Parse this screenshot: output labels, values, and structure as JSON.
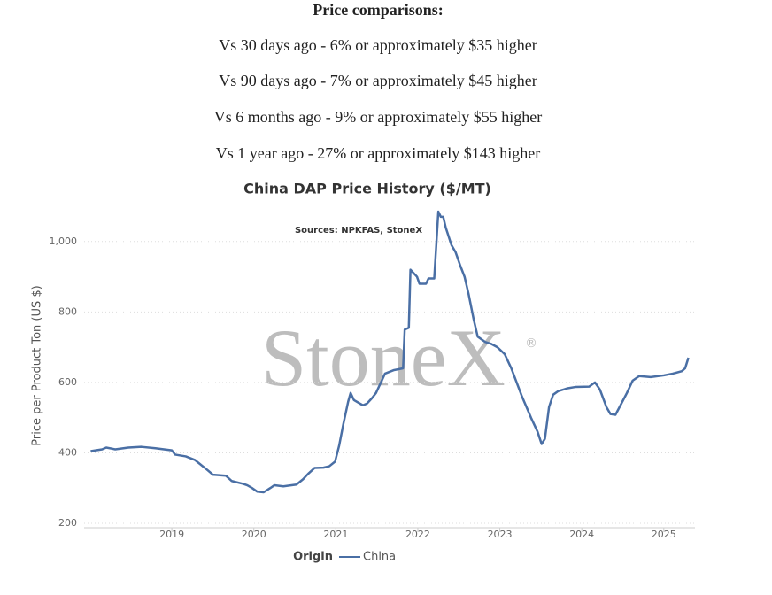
{
  "header": {
    "title": "Price comparisons:",
    "lines": [
      "Vs 30 days ago - 6% or approximately $35 higher",
      "Vs 90 days ago - 7% or approximately $45 higher",
      "Vs 6 months ago - 9% or approximately $55 higher",
      "Vs 1 year ago - 27% or approximately $143 higher"
    ]
  },
  "chart_data": {
    "type": "line",
    "title": "China DAP Price History ($/MT)",
    "subtitle": "Sources: NPKFAS, StoneX",
    "y_label": "Price per Product Ton (US $)",
    "watermark": "StoneX",
    "watermark_mark": "®",
    "legend_title": "Origin",
    "grid": true,
    "xlim": [
      2017.93,
      2025.38
    ],
    "xticks": [
      2019,
      2020,
      2021,
      2022,
      2023,
      2024,
      2025
    ],
    "ylim": [
      200,
      1100
    ],
    "yticks": [
      200,
      400,
      600,
      800,
      {
        "value": 1000,
        "label": "1,000"
      }
    ],
    "x": [
      2018.01,
      2018.15,
      2018.2,
      2018.31,
      2018.47,
      2018.63,
      2018.8,
      2019.0,
      2019.04,
      2019.17,
      2019.28,
      2019.44,
      2019.5,
      2019.66,
      2019.73,
      2019.87,
      2019.92,
      2019.98,
      2020.04,
      2020.12,
      2020.2,
      2020.25,
      2020.36,
      2020.52,
      2020.6,
      2020.66,
      2020.74,
      2020.85,
      2020.92,
      2020.99,
      2021.04,
      2021.09,
      2021.15,
      2021.18,
      2021.22,
      2021.33,
      2021.38,
      2021.44,
      2021.49,
      2021.55,
      2021.6,
      2021.71,
      2021.82,
      2021.84,
      2021.89,
      2021.91,
      2021.99,
      2022.02,
      2022.1,
      2022.13,
      2022.2,
      2022.25,
      2022.28,
      2022.31,
      2022.34,
      2022.41,
      2022.46,
      2022.52,
      2022.57,
      2022.62,
      2022.68,
      2022.73,
      2022.82,
      2022.89,
      2022.97,
      2023.06,
      2023.14,
      2023.27,
      2023.38,
      2023.46,
      2023.51,
      2023.55,
      2023.6,
      2023.65,
      2023.71,
      2023.82,
      2023.92,
      2024.09,
      2024.16,
      2024.22,
      2024.3,
      2024.35,
      2024.41,
      2024.46,
      2024.55,
      2024.62,
      2024.7,
      2024.84,
      2025.0,
      2025.11,
      2025.22,
      2025.26,
      2025.3
    ],
    "series": [
      {
        "name": "China",
        "color": "#4a6fa5",
        "values": [
          405,
          410,
          415,
          410,
          415,
          417,
          413,
          407,
          395,
          390,
          380,
          350,
          338,
          335,
          320,
          312,
          308,
          300,
          290,
          288,
          300,
          308,
          305,
          310,
          325,
          340,
          357,
          358,
          362,
          375,
          420,
          480,
          545,
          570,
          550,
          535,
          540,
          555,
          570,
          600,
          625,
          635,
          640,
          750,
          755,
          920,
          900,
          880,
          880,
          895,
          895,
          1085,
          1070,
          1070,
          1040,
          990,
          970,
          930,
          900,
          850,
          780,
          730,
          715,
          710,
          700,
          680,
          640,
          560,
          500,
          460,
          425,
          440,
          530,
          565,
          575,
          583,
          587,
          588,
          600,
          580,
          530,
          510,
          508,
          530,
          570,
          605,
          618,
          615,
          620,
          625,
          632,
          640,
          670
        ]
      }
    ]
  }
}
